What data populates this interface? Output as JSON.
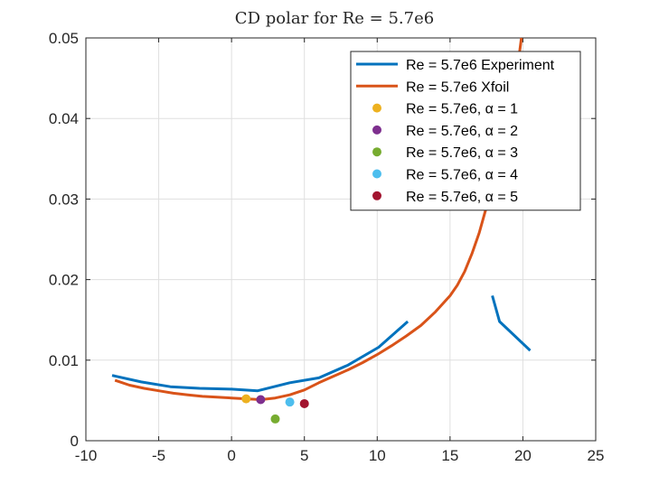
{
  "chart_data": {
    "type": "line",
    "title": "CD polar for Re = 5.7e6",
    "xlabel": "",
    "ylabel": "",
    "xlim": [
      -10,
      25
    ],
    "ylim": [
      0,
      0.05
    ],
    "x_ticks": [
      -10,
      -5,
      0,
      5,
      10,
      15,
      20,
      25
    ],
    "y_ticks": [
      0,
      0.01,
      0.02,
      0.03,
      0.04,
      0.05
    ],
    "x_tick_labels": [
      "-10",
      "-5",
      "0",
      "5",
      "10",
      "15",
      "20",
      "25"
    ],
    "y_tick_labels": [
      "0",
      "0.01",
      "0.02",
      "0.03",
      "0.04",
      "0.05"
    ],
    "grid": true,
    "legend_position": "top-right",
    "series": [
      {
        "name": "Re = 5.7e6 Experiment",
        "kind": "line",
        "color": "#0072BD",
        "segments": [
          [
            [
              -8.2,
              0.0081
            ],
            [
              -6.2,
              0.0073
            ],
            [
              -4.2,
              0.0067
            ],
            [
              -2.2,
              0.0065
            ],
            [
              0,
              0.0064
            ],
            [
              1.8,
              0.0062
            ],
            [
              4,
              0.0072
            ],
            [
              6,
              0.0078
            ],
            [
              8,
              0.0094
            ],
            [
              10.1,
              0.0116
            ],
            [
              12.1,
              0.0148
            ]
          ],
          [
            [
              17.9,
              0.018
            ],
            [
              18.4,
              0.0148
            ],
            [
              20.5,
              0.0112
            ]
          ]
        ]
      },
      {
        "name": "Re = 5.7e6 Xfoil",
        "kind": "line",
        "color": "#D95319",
        "segments": [
          [
            [
              -8,
              0.0075
            ],
            [
              -7,
              0.0069
            ],
            [
              -6,
              0.0065
            ],
            [
              -5,
              0.0062
            ],
            [
              -4,
              0.0059
            ],
            [
              -3,
              0.0057
            ],
            [
              -2,
              0.0055
            ],
            [
              -1,
              0.0054
            ],
            [
              0,
              0.0053
            ],
            [
              1,
              0.0052
            ],
            [
              2,
              0.0051
            ],
            [
              3,
              0.0053
            ],
            [
              4,
              0.0057
            ],
            [
              5,
              0.0063
            ],
            [
              6,
              0.0072
            ],
            [
              7,
              0.008
            ],
            [
              8,
              0.0088
            ],
            [
              9,
              0.0097
            ],
            [
              10,
              0.0107
            ],
            [
              11,
              0.0118
            ],
            [
              12,
              0.013
            ],
            [
              13,
              0.0143
            ],
            [
              14,
              0.016
            ],
            [
              15,
              0.018
            ],
            [
              15.5,
              0.0193
            ],
            [
              16,
              0.021
            ],
            [
              16.5,
              0.0232
            ],
            [
              17,
              0.0258
            ],
            [
              17.5,
              0.029
            ],
            [
              18,
              0.0325
            ],
            [
              18.5,
              0.036
            ],
            [
              19,
              0.0398
            ],
            [
              19.5,
              0.0445
            ],
            [
              19.9,
              0.05
            ]
          ]
        ]
      },
      {
        "name": "Re = 5.7e6, α = 1",
        "kind": "point",
        "color": "#EDB120",
        "x": 1,
        "y": 0.0052
      },
      {
        "name": "Re = 5.7e6, α = 2",
        "kind": "point",
        "color": "#7E2F8E",
        "x": 2,
        "y": 0.0051
      },
      {
        "name": "Re = 5.7e6, α = 3",
        "kind": "point",
        "color": "#77AC30",
        "x": 3,
        "y": 0.0027
      },
      {
        "name": "Re = 5.7e6, α = 4",
        "kind": "point",
        "color": "#4DBEEE",
        "x": 4,
        "y": 0.0048
      },
      {
        "name": "Re = 5.7e6, α = 5",
        "kind": "point",
        "color": "#A2142F",
        "x": 5,
        "y": 0.0046
      }
    ]
  }
}
